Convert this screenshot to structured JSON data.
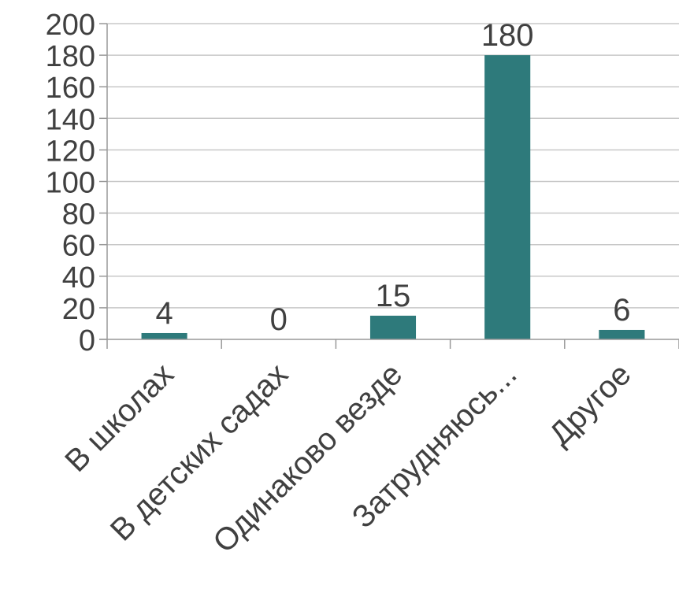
{
  "chart_data": {
    "type": "bar",
    "categories": [
      "В школах",
      "В детских садах",
      "Одинаково везде",
      "Затрудняюсь...",
      "Другое"
    ],
    "values": [
      4,
      0,
      15,
      180,
      6
    ],
    "data_labels": [
      "4",
      "0",
      "15",
      "180",
      "6"
    ],
    "title": "",
    "xlabel": "",
    "ylabel": "",
    "ylim": [
      0,
      200
    ],
    "yticks": [
      0,
      20,
      40,
      60,
      80,
      100,
      120,
      140,
      160,
      180,
      200
    ],
    "grid": true,
    "legend": "none",
    "bar_color": "#2e7a7b",
    "grid_color": "#c8c8c8",
    "axis_color": "#999999",
    "text_color": "#404040"
  }
}
